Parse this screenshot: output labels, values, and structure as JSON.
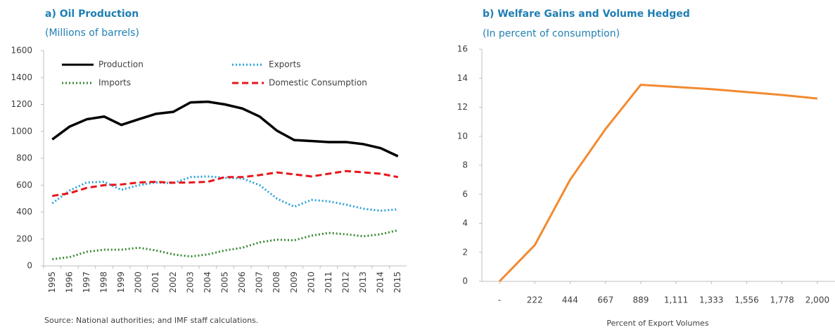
{
  "chart_data": [
    {
      "type": "line",
      "title": "a) Oil Production",
      "subtitle": "(Millions of barrels)",
      "categories": [
        "1995",
        "1996",
        "1997",
        "1998",
        "1999",
        "2000",
        "2001",
        "2002",
        "2003",
        "2004",
        "2005",
        "2006",
        "2007",
        "2008",
        "2009",
        "2010",
        "2011",
        "2012",
        "2013",
        "2014",
        "2015"
      ],
      "series": [
        {
          "name": "Production",
          "color": "#000000",
          "style": "solid",
          "values": [
            940,
            1035,
            1090,
            1110,
            1048,
            1090,
            1130,
            1145,
            1215,
            1220,
            1200,
            1170,
            1110,
            1005,
            935,
            928,
            920,
            920,
            905,
            875,
            815
          ]
        },
        {
          "name": "Exports",
          "color": "#2ea3d8",
          "style": "dotted",
          "values": [
            465,
            560,
            620,
            625,
            565,
            600,
            620,
            615,
            660,
            665,
            655,
            650,
            600,
            500,
            440,
            490,
            480,
            455,
            425,
            410,
            420
          ]
        },
        {
          "name": "Imports",
          "color": "#3a8a35",
          "style": "dotted",
          "values": [
            50,
            65,
            105,
            120,
            120,
            135,
            115,
            85,
            70,
            85,
            115,
            135,
            175,
            195,
            190,
            225,
            245,
            235,
            220,
            235,
            265
          ]
        },
        {
          "name": "Domestic Consumption",
          "color": "#e8161b",
          "style": "dashed",
          "values": [
            520,
            540,
            580,
            600,
            605,
            620,
            625,
            618,
            620,
            625,
            660,
            660,
            675,
            695,
            680,
            665,
            685,
            705,
            695,
            685,
            660
          ]
        }
      ],
      "ylim": [
        0,
        1600
      ],
      "yticks": [
        0,
        200,
        400,
        600,
        800,
        1000,
        1200,
        1400,
        1600
      ],
      "source": "Source: National authorities; and IMF staff calculations."
    },
    {
      "type": "line",
      "title": "b) Welfare Gains and Volume Hedged",
      "subtitle": "(In percent of consumption)",
      "x_label": "Percent of Export Volumes",
      "x": [
        0,
        222,
        444,
        667,
        889,
        1111,
        1333,
        1556,
        1778,
        2000
      ],
      "series": [
        {
          "color": "#f28a30",
          "values": [
            0,
            2.5,
            7,
            10.5,
            13.55,
            13.4,
            13.25,
            13.05,
            12.85,
            12.6
          ]
        }
      ],
      "xlim": [
        -111,
        2111
      ],
      "xticks": [
        {
          "value": 0,
          "label": "-"
        },
        222,
        444,
        667,
        889,
        {
          "value": 1111,
          "label": "1,111"
        },
        {
          "value": 1333,
          "label": "1,333"
        },
        {
          "value": 1556,
          "label": "1,556"
        },
        {
          "value": 1778,
          "label": "1,778"
        },
        {
          "value": 2000,
          "label": "2,000"
        }
      ],
      "ylim": [
        0,
        16
      ],
      "yticks": [
        0,
        2,
        4,
        6,
        8,
        10,
        12,
        14,
        16
      ]
    }
  ]
}
